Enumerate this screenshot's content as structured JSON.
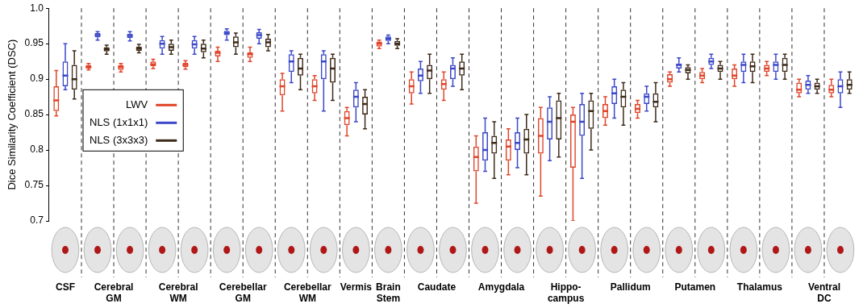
{
  "chart_data": {
    "type": "box",
    "ylabel": "Dice Similarity Coefficient (DSC)",
    "ylim": [
      0.7,
      1.0
    ],
    "yticks": [
      0.7,
      0.75,
      0.8,
      0.85,
      0.9,
      0.95,
      {
        "value": 1.0,
        "label": "1.0"
      }
    ],
    "grid": false,
    "legend": "left",
    "categories": [
      "CSF",
      "Cerebral GM",
      null,
      "Cerebral WM",
      null,
      "Cerebellar GM",
      null,
      "Cerebellar WM",
      null,
      "Vermis",
      "Brain Stem",
      "Caudate",
      null,
      "Amygdala",
      null,
      "Hippo-campus",
      null,
      "Pallidum",
      null,
      "Putamen",
      null,
      "Thalamus",
      null,
      "Ventral DC",
      null
    ],
    "series": [
      {
        "name": "LWV",
        "color": "#e0452a",
        "values": [
          [
            0.848,
            0.855,
            0.87,
            0.89,
            0.912
          ],
          [
            0.913,
            0.915,
            0.917,
            0.92,
            0.922
          ],
          [
            0.91,
            0.913,
            0.917,
            0.92,
            0.922
          ],
          [
            0.915,
            0.918,
            0.921,
            0.925,
            0.928
          ],
          [
            0.914,
            0.917,
            0.92,
            0.923,
            0.926
          ],
          [
            0.925,
            0.932,
            0.937,
            0.94,
            0.945
          ],
          [
            0.925,
            0.93,
            0.935,
            0.938,
            0.945
          ],
          [
            0.855,
            0.877,
            0.89,
            0.9,
            0.908
          ],
          [
            0.87,
            0.88,
            0.89,
            0.9,
            0.905
          ],
          [
            0.82,
            0.835,
            0.845,
            0.855,
            0.86
          ],
          [
            0.943,
            0.946,
            0.95,
            0.953,
            0.955
          ],
          [
            0.865,
            0.88,
            0.89,
            0.9,
            0.91
          ],
          [
            0.87,
            0.885,
            0.893,
            0.9,
            0.91
          ],
          [
            0.725,
            0.77,
            0.79,
            0.805,
            0.82
          ],
          [
            0.765,
            0.785,
            0.805,
            0.815,
            0.83
          ],
          [
            0.735,
            0.795,
            0.82,
            0.845,
            0.86
          ],
          [
            0.7,
            0.775,
            0.84,
            0.85,
            0.86
          ],
          [
            0.835,
            0.845,
            0.855,
            0.865,
            0.875
          ],
          [
            0.845,
            0.852,
            0.858,
            0.865,
            0.87
          ],
          [
            0.89,
            0.895,
            0.9,
            0.907,
            0.91
          ],
          [
            0.895,
            0.9,
            0.905,
            0.91,
            0.915
          ],
          [
            0.89,
            0.9,
            0.905,
            0.915,
            0.92
          ],
          [
            0.905,
            0.91,
            0.915,
            0.92,
            0.925
          ],
          [
            0.875,
            0.88,
            0.885,
            0.895,
            0.9
          ],
          [
            0.875,
            0.88,
            0.885,
            0.892,
            0.9
          ]
        ]
      },
      {
        "name": "NLS (1x1x1)",
        "color": "#3b48c9",
        "values": [
          [
            0.885,
            0.89,
            0.905,
            0.925,
            0.95
          ],
          [
            0.955,
            0.959,
            0.962,
            0.965,
            0.967
          ],
          [
            0.954,
            0.958,
            0.961,
            0.964,
            0.967
          ],
          [
            0.935,
            0.943,
            0.95,
            0.955,
            0.96
          ],
          [
            0.935,
            0.943,
            0.949,
            0.955,
            0.96
          ],
          [
            0.955,
            0.962,
            0.965,
            0.968,
            0.971
          ],
          [
            0.95,
            0.957,
            0.962,
            0.966,
            0.97
          ],
          [
            0.895,
            0.91,
            0.925,
            0.935,
            0.94
          ],
          [
            0.855,
            0.9,
            0.925,
            0.935,
            0.94
          ],
          [
            0.84,
            0.86,
            0.875,
            0.885,
            0.895
          ],
          [
            0.95,
            0.954,
            0.957,
            0.96,
            0.962
          ],
          [
            0.88,
            0.897,
            0.905,
            0.915,
            0.925
          ],
          [
            0.89,
            0.9,
            0.915,
            0.92,
            0.93
          ],
          [
            0.77,
            0.785,
            0.8,
            0.825,
            0.845
          ],
          [
            0.775,
            0.8,
            0.81,
            0.825,
            0.845
          ],
          [
            0.785,
            0.815,
            0.84,
            0.86,
            0.875
          ],
          [
            0.76,
            0.82,
            0.84,
            0.865,
            0.88
          ],
          [
            0.845,
            0.865,
            0.88,
            0.89,
            0.9
          ],
          [
            0.855,
            0.865,
            0.875,
            0.88,
            0.89
          ],
          [
            0.91,
            0.915,
            0.92,
            0.922,
            0.93
          ],
          [
            0.915,
            0.92,
            0.925,
            0.93,
            0.935
          ],
          [
            0.895,
            0.91,
            0.92,
            0.925,
            0.935
          ],
          [
            0.9,
            0.91,
            0.92,
            0.925,
            0.935
          ],
          [
            0.88,
            0.885,
            0.892,
            0.898,
            0.905
          ],
          [
            0.86,
            0.88,
            0.89,
            0.9,
            0.91
          ]
        ]
      },
      {
        "name": "NLS (3x3x3)",
        "color": "#3d2a1a",
        "values": [
          [
            0.872,
            0.885,
            0.9,
            0.92,
            0.94
          ],
          [
            0.935,
            0.939,
            0.942,
            0.945,
            0.948
          ],
          [
            0.937,
            0.94,
            0.943,
            0.946,
            0.949
          ],
          [
            0.935,
            0.94,
            0.945,
            0.95,
            0.955
          ],
          [
            0.93,
            0.938,
            0.943,
            0.95,
            0.955
          ],
          [
            0.935,
            0.945,
            0.952,
            0.96,
            0.965
          ],
          [
            0.94,
            0.945,
            0.952,
            0.957,
            0.963
          ],
          [
            0.885,
            0.905,
            0.915,
            0.93,
            0.935
          ],
          [
            0.87,
            0.895,
            0.915,
            0.93,
            0.935
          ],
          [
            0.83,
            0.85,
            0.865,
            0.875,
            0.885
          ],
          [
            0.943,
            0.947,
            0.95,
            0.954,
            0.957
          ],
          [
            0.88,
            0.9,
            0.912,
            0.92,
            0.935
          ],
          [
            0.885,
            0.905,
            0.915,
            0.925,
            0.935
          ],
          [
            0.76,
            0.795,
            0.81,
            0.82,
            0.84
          ],
          [
            0.765,
            0.795,
            0.815,
            0.83,
            0.85
          ],
          [
            0.79,
            0.815,
            0.845,
            0.87,
            0.88
          ],
          [
            0.8,
            0.83,
            0.855,
            0.87,
            0.88
          ],
          [
            0.835,
            0.86,
            0.875,
            0.885,
            0.895
          ],
          [
            0.84,
            0.86,
            0.868,
            0.88,
            0.895
          ],
          [
            0.9,
            0.908,
            0.913,
            0.917,
            0.92
          ],
          [
            0.9,
            0.91,
            0.915,
            0.92,
            0.925
          ],
          [
            0.895,
            0.91,
            0.918,
            0.925,
            0.935
          ],
          [
            0.9,
            0.91,
            0.92,
            0.93,
            0.935
          ],
          [
            0.88,
            0.885,
            0.89,
            0.895,
            0.9
          ],
          [
            0.88,
            0.885,
            0.892,
            0.9,
            0.91
          ]
        ]
      }
    ]
  }
}
